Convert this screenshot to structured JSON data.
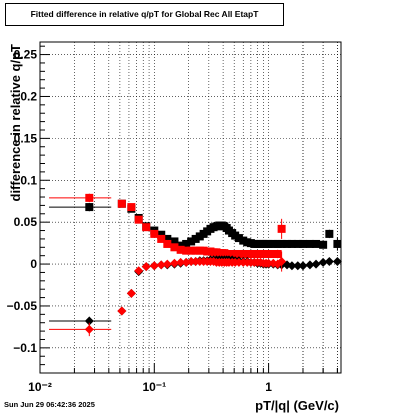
{
  "title": "Fitted difference in relative q/pT for Global Rec All EtapT",
  "footer": "Sun Jun 29 06:42:36 2025",
  "chart_data": {
    "type": "scatter",
    "title": "Fitted difference in relative q/pT for Global Rec All EtapT",
    "xlabel": "pT/|q| (GeV/c)",
    "ylabel": "difference in relative q/pT",
    "x_scale": "log",
    "xlim": [
      0.01,
      4.3
    ],
    "ylim": [
      -0.13,
      0.265
    ],
    "x_ticks": [
      {
        "value": 0.01,
        "label": "10⁻²"
      },
      {
        "value": 0.1,
        "label": "10⁻¹"
      },
      {
        "value": 1,
        "label": "1"
      }
    ],
    "y_ticks": [
      {
        "value": -0.1,
        "label": "−0.1"
      },
      {
        "value": -0.05,
        "label": "−0.05"
      },
      {
        "value": 0,
        "label": "0"
      },
      {
        "value": 0.05,
        "label": "0.05"
      },
      {
        "value": 0.1,
        "label": "0.1"
      },
      {
        "value": 0.15,
        "label": "0.15"
      },
      {
        "value": 0.2,
        "label": "0.2"
      },
      {
        "value": 0.25,
        "label": "0.25"
      }
    ],
    "grid": true,
    "series": [
      {
        "color": "#000000",
        "marker": "square",
        "points": [
          [
            0.027,
            0.068,
            0.015,
            0.005
          ],
          [
            0.052,
            0.072,
            0.003,
            0.002
          ],
          [
            0.063,
            0.066,
            0.002,
            0.002
          ],
          [
            0.073,
            0.055,
            0.002,
            0.002
          ],
          [
            0.085,
            0.045,
            0.002,
            0.002
          ],
          [
            0.1,
            0.04,
            0.002,
            0.002
          ],
          [
            0.115,
            0.035,
            0.002,
            0.002
          ],
          [
            0.13,
            0.03,
            0.002,
            0.002
          ],
          [
            0.15,
            0.027,
            0.002,
            0.002
          ],
          [
            0.17,
            0.022,
            0.002,
            0.002
          ],
          [
            0.19,
            0.024,
            0.002,
            0.002
          ],
          [
            0.21,
            0.027,
            0.002,
            0.002
          ],
          [
            0.23,
            0.03,
            0.002,
            0.002
          ],
          [
            0.25,
            0.033,
            0.002,
            0.002
          ],
          [
            0.27,
            0.036,
            0.002,
            0.002
          ],
          [
            0.29,
            0.039,
            0.002,
            0.002
          ],
          [
            0.31,
            0.042,
            0.002,
            0.002
          ],
          [
            0.33,
            0.044,
            0.002,
            0.002
          ],
          [
            0.35,
            0.045,
            0.002,
            0.002
          ],
          [
            0.37,
            0.046,
            0.002,
            0.002
          ],
          [
            0.39,
            0.046,
            0.002,
            0.002
          ],
          [
            0.41,
            0.045,
            0.002,
            0.002
          ],
          [
            0.43,
            0.043,
            0.002,
            0.002
          ],
          [
            0.45,
            0.04,
            0.002,
            0.002
          ],
          [
            0.48,
            0.037,
            0.002,
            0.002
          ],
          [
            0.51,
            0.034,
            0.002,
            0.002
          ],
          [
            0.55,
            0.031,
            0.002,
            0.002
          ],
          [
            0.6,
            0.028,
            0.002,
            0.002
          ],
          [
            0.65,
            0.026,
            0.002,
            0.002
          ],
          [
            0.7,
            0.025,
            0.002,
            0.002
          ],
          [
            0.75,
            0.024,
            0.002,
            0.002
          ],
          [
            0.8,
            0.024,
            0.002,
            0.002
          ],
          [
            0.85,
            0.024,
            0.002,
            0.002
          ],
          [
            0.9,
            0.024,
            0.002,
            0.002
          ],
          [
            0.95,
            0.024,
            0.002,
            0.002
          ],
          [
            1.0,
            0.024,
            0.002,
            0.002
          ],
          [
            1.1,
            0.024,
            0.002,
            0.002
          ],
          [
            1.2,
            0.024,
            0.002,
            0.002
          ],
          [
            1.3,
            0.024,
            0.002,
            0.002
          ],
          [
            1.45,
            0.024,
            0.002,
            0.002
          ],
          [
            1.6,
            0.024,
            0.002,
            0.002
          ],
          [
            1.8,
            0.024,
            0.002,
            0.002
          ],
          [
            2.0,
            0.024,
            0.002,
            0.002
          ],
          [
            2.3,
            0.024,
            0.002,
            0.002
          ],
          [
            2.6,
            0.024,
            0.002,
            0.002
          ],
          [
            3.0,
            0.023,
            0.002,
            0.003
          ],
          [
            3.4,
            0.036,
            0.002,
            0.005
          ],
          [
            4.0,
            0.024,
            0.002,
            0.008
          ]
        ]
      },
      {
        "color": "#ff0000",
        "marker": "square",
        "points": [
          [
            0.027,
            0.079,
            0.015,
            0.005
          ],
          [
            0.052,
            0.072,
            0.003,
            0.003
          ],
          [
            0.063,
            0.068,
            0.003,
            0.003
          ],
          [
            0.073,
            0.053,
            0.002,
            0.003
          ],
          [
            0.085,
            0.044,
            0.002,
            0.003
          ],
          [
            0.1,
            0.036,
            0.002,
            0.003
          ],
          [
            0.115,
            0.03,
            0.002,
            0.003
          ],
          [
            0.13,
            0.024,
            0.002,
            0.003
          ],
          [
            0.15,
            0.02,
            0.002,
            0.003
          ],
          [
            0.17,
            0.017,
            0.002,
            0.003
          ],
          [
            0.19,
            0.016,
            0.002,
            0.003
          ],
          [
            0.21,
            0.016,
            0.002,
            0.003
          ],
          [
            0.23,
            0.016,
            0.002,
            0.003
          ],
          [
            0.25,
            0.016,
            0.002,
            0.003
          ],
          [
            0.27,
            0.016,
            0.002,
            0.003
          ],
          [
            0.29,
            0.015,
            0.002,
            0.003
          ],
          [
            0.31,
            0.015,
            0.002,
            0.003
          ],
          [
            0.33,
            0.014,
            0.002,
            0.003
          ],
          [
            0.35,
            0.014,
            0.002,
            0.003
          ],
          [
            0.37,
            0.013,
            0.002,
            0.003
          ],
          [
            0.39,
            0.013,
            0.002,
            0.003
          ],
          [
            0.41,
            0.013,
            0.002,
            0.003
          ],
          [
            0.43,
            0.012,
            0.002,
            0.003
          ],
          [
            0.45,
            0.012,
            0.002,
            0.003
          ],
          [
            0.48,
            0.012,
            0.002,
            0.003
          ],
          [
            0.51,
            0.012,
            0.002,
            0.003
          ],
          [
            0.55,
            0.012,
            0.002,
            0.003
          ],
          [
            0.6,
            0.012,
            0.002,
            0.003
          ],
          [
            0.65,
            0.012,
            0.002,
            0.003
          ],
          [
            0.7,
            0.012,
            0.002,
            0.003
          ],
          [
            0.75,
            0.012,
            0.002,
            0.003
          ],
          [
            0.8,
            0.012,
            0.002,
            0.003
          ],
          [
            0.85,
            0.012,
            0.002,
            0.003
          ],
          [
            0.9,
            0.012,
            0.002,
            0.003
          ],
          [
            0.95,
            0.012,
            0.002,
            0.003
          ],
          [
            1.0,
            0.012,
            0.002,
            0.004
          ],
          [
            1.1,
            0.012,
            0.002,
            0.004
          ],
          [
            1.2,
            0.012,
            0.002,
            0.005
          ],
          [
            1.3,
            0.042,
            0.002,
            0.012
          ]
        ]
      },
      {
        "color": "#000000",
        "marker": "diamond",
        "points": [
          [
            0.027,
            -0.068,
            0.015,
            0.005
          ],
          [
            0.052,
            -0.056,
            0.003,
            0.003
          ],
          [
            0.063,
            -0.035,
            0.002,
            0.003
          ],
          [
            0.073,
            -0.009,
            0.002,
            0.002
          ],
          [
            0.085,
            -0.003,
            0.002,
            0.002
          ],
          [
            0.1,
            -0.002,
            0.002,
            0.002
          ],
          [
            0.115,
            -0.001,
            0.002,
            0.002
          ],
          [
            0.13,
            -0.001,
            0.002,
            0.002
          ],
          [
            0.15,
            0.0,
            0.002,
            0.002
          ],
          [
            0.17,
            0.001,
            0.002,
            0.002
          ],
          [
            0.19,
            0.002,
            0.002,
            0.002
          ],
          [
            0.21,
            0.003,
            0.002,
            0.002
          ],
          [
            0.23,
            0.003,
            0.002,
            0.002
          ],
          [
            0.25,
            0.004,
            0.002,
            0.002
          ],
          [
            0.27,
            0.004,
            0.002,
            0.002
          ],
          [
            0.29,
            0.004,
            0.002,
            0.002
          ],
          [
            0.31,
            0.005,
            0.002,
            0.002
          ],
          [
            0.33,
            0.005,
            0.002,
            0.002
          ],
          [
            0.35,
            0.005,
            0.002,
            0.002
          ],
          [
            0.37,
            0.005,
            0.002,
            0.002
          ],
          [
            0.39,
            0.005,
            0.002,
            0.002
          ],
          [
            0.41,
            0.005,
            0.002,
            0.002
          ],
          [
            0.43,
            0.005,
            0.002,
            0.002
          ],
          [
            0.45,
            0.005,
            0.002,
            0.002
          ],
          [
            0.48,
            0.005,
            0.002,
            0.002
          ],
          [
            0.51,
            0.004,
            0.002,
            0.002
          ],
          [
            0.55,
            0.004,
            0.002,
            0.002
          ],
          [
            0.6,
            0.003,
            0.002,
            0.002
          ],
          [
            0.65,
            0.003,
            0.002,
            0.002
          ],
          [
            0.7,
            0.002,
            0.002,
            0.002
          ],
          [
            0.75,
            0.002,
            0.002,
            0.002
          ],
          [
            0.8,
            0.001,
            0.002,
            0.002
          ],
          [
            0.85,
            0.001,
            0.002,
            0.002
          ],
          [
            0.9,
            0.0,
            0.002,
            0.002
          ],
          [
            0.95,
            0.0,
            0.002,
            0.002
          ],
          [
            1.0,
            0.0,
            0.002,
            0.002
          ],
          [
            1.1,
            0.0,
            0.002,
            0.002
          ],
          [
            1.2,
            -0.001,
            0.002,
            0.002
          ],
          [
            1.3,
            -0.001,
            0.002,
            0.002
          ],
          [
            1.45,
            -0.001,
            0.002,
            0.002
          ],
          [
            1.6,
            -0.002,
            0.002,
            0.002
          ],
          [
            1.8,
            -0.002,
            0.002,
            0.002
          ],
          [
            2.0,
            -0.002,
            0.002,
            0.002
          ],
          [
            2.3,
            -0.001,
            0.002,
            0.002
          ],
          [
            2.6,
            0.0,
            0.002,
            0.002
          ],
          [
            3.0,
            0.002,
            0.002,
            0.002
          ],
          [
            3.4,
            0.003,
            0.002,
            0.002
          ],
          [
            4.0,
            0.003,
            0.002,
            0.002
          ]
        ]
      },
      {
        "color": "#ff0000",
        "marker": "diamond",
        "points": [
          [
            0.027,
            -0.078,
            0.015,
            0.008
          ],
          [
            0.052,
            -0.056,
            0.003,
            0.003
          ],
          [
            0.063,
            -0.035,
            0.002,
            0.003
          ],
          [
            0.073,
            -0.008,
            0.002,
            0.003
          ],
          [
            0.085,
            -0.003,
            0.002,
            0.003
          ],
          [
            0.1,
            -0.002,
            0.002,
            0.003
          ],
          [
            0.115,
            -0.001,
            0.002,
            0.003
          ],
          [
            0.13,
            0.0,
            0.002,
            0.003
          ],
          [
            0.15,
            0.001,
            0.002,
            0.003
          ],
          [
            0.17,
            0.002,
            0.002,
            0.003
          ],
          [
            0.19,
            0.002,
            0.002,
            0.003
          ],
          [
            0.21,
            0.003,
            0.002,
            0.003
          ],
          [
            0.23,
            0.003,
            0.002,
            0.003
          ],
          [
            0.25,
            0.003,
            0.002,
            0.003
          ],
          [
            0.27,
            0.003,
            0.002,
            0.003
          ],
          [
            0.29,
            0.003,
            0.002,
            0.003
          ],
          [
            0.31,
            0.003,
            0.002,
            0.003
          ],
          [
            0.33,
            0.003,
            0.002,
            0.003
          ],
          [
            0.35,
            0.002,
            0.002,
            0.003
          ],
          [
            0.37,
            0.002,
            0.002,
            0.003
          ],
          [
            0.39,
            0.002,
            0.002,
            0.003
          ],
          [
            0.41,
            0.002,
            0.002,
            0.003
          ],
          [
            0.43,
            0.002,
            0.002,
            0.003
          ],
          [
            0.45,
            0.002,
            0.002,
            0.003
          ],
          [
            0.48,
            0.002,
            0.002,
            0.003
          ],
          [
            0.51,
            0.002,
            0.002,
            0.003
          ],
          [
            0.55,
            0.002,
            0.002,
            0.003
          ],
          [
            0.6,
            0.002,
            0.002,
            0.003
          ],
          [
            0.65,
            0.002,
            0.002,
            0.003
          ],
          [
            0.7,
            0.002,
            0.002,
            0.003
          ],
          [
            0.75,
            0.002,
            0.002,
            0.003
          ],
          [
            0.8,
            0.002,
            0.002,
            0.003
          ],
          [
            0.85,
            0.002,
            0.002,
            0.003
          ],
          [
            0.9,
            0.001,
            0.002,
            0.003
          ],
          [
            0.95,
            0.001,
            0.002,
            0.003
          ],
          [
            1.0,
            0.001,
            0.002,
            0.004
          ],
          [
            1.1,
            0.001,
            0.002,
            0.004
          ],
          [
            1.2,
            0.0,
            0.002,
            0.005
          ],
          [
            1.3,
            0.003,
            0.002,
            0.012
          ]
        ]
      }
    ]
  }
}
